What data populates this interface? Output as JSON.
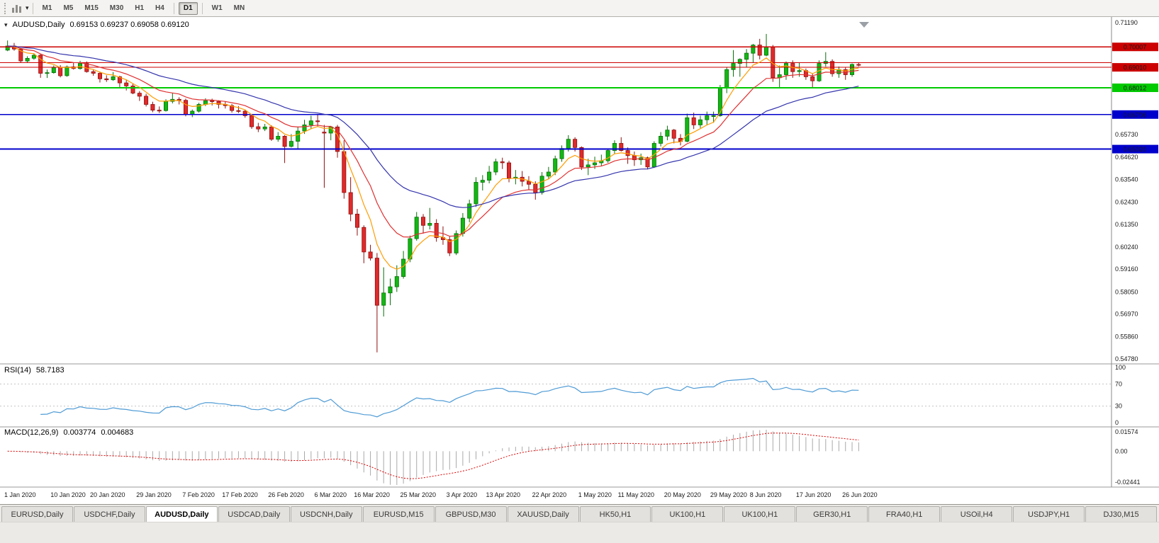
{
  "toolbar": {
    "timeframes": [
      "M1",
      "M5",
      "M15",
      "M30",
      "H1",
      "H4",
      "D1",
      "W1",
      "MN"
    ],
    "active_timeframe": "D1"
  },
  "chart": {
    "symbol_label": "AUDUSD,Daily",
    "ohlc": "0.69153 0.69237 0.69058 0.69120",
    "open": "0.69153",
    "high": "0.69237",
    "low": "0.69058",
    "close": "0.69120"
  },
  "chart_data": {
    "type": "candlestick",
    "symbol": "AUDUSD",
    "timeframe": "Daily",
    "ylim": [
      0.5478,
      0.7119
    ],
    "bull_color": "#12b812",
    "bull_edge": "#0a6e0a",
    "bear_color": "#e02a2a",
    "bear_edge": "#8f1010",
    "x_labels": [
      "1 Jan 2020",
      "10 Jan 2020",
      "20 Jan 2020",
      "29 Jan 2020",
      "7 Feb 2020",
      "17 Feb 2020",
      "26 Feb 2020",
      "6 Mar 2020",
      "16 Mar 2020",
      "25 Mar 2020",
      "3 Apr 2020",
      "13 Apr 2020",
      "22 Apr 2020",
      "1 May 2020",
      "11 May 2020",
      "20 May 2020",
      "29 May 2020",
      "8 Jun 2020",
      "17 Jun 2020",
      "26 Jun 2020"
    ],
    "x_label_indices": [
      0,
      7,
      13,
      20,
      27,
      33,
      40,
      47,
      53,
      60,
      67,
      73,
      80,
      87,
      93,
      100,
      107,
      113,
      120,
      127
    ],
    "price_axis_ticks": [
      {
        "value": 0.7119,
        "label": "0.71190"
      },
      {
        "value": 0.6573,
        "label": "0.65730"
      },
      {
        "value": 0.6462,
        "label": "0.64620"
      },
      {
        "value": 0.6354,
        "label": "0.63540"
      },
      {
        "value": 0.6243,
        "label": "0.62430"
      },
      {
        "value": 0.6135,
        "label": "0.61350"
      },
      {
        "value": 0.6024,
        "label": "0.60240"
      },
      {
        "value": 0.5916,
        "label": "0.59160"
      },
      {
        "value": 0.5805,
        "label": "0.58050"
      },
      {
        "value": 0.5697,
        "label": "0.56970"
      },
      {
        "value": 0.5586,
        "label": "0.55860"
      },
      {
        "value": 0.5478,
        "label": "0.54780"
      }
    ],
    "hlines": [
      {
        "value": 0.70007,
        "color": "#cc0000",
        "width": 1.2,
        "label": "0.70007"
      },
      {
        "value": 0.6924,
        "color": "#cc0000",
        "width": 1.2,
        "label": ""
      },
      {
        "value": 0.6901,
        "color": "#cc0000",
        "width": 1.2,
        "label": "0.69010"
      },
      {
        "value": 0.68012,
        "color": "#00ca00",
        "width": 1.8,
        "label": "0.68012"
      },
      {
        "value": 0.66706,
        "color": "#0000cc",
        "width": 1.8,
        "label": "0.66706"
      },
      {
        "value": 0.6502,
        "color": "#0000cc",
        "width": 1.8,
        "label": "0.65020"
      }
    ],
    "moving_averages": [
      {
        "period": 6,
        "color": "#ff9c00"
      },
      {
        "period": 13,
        "color": "#e03030"
      },
      {
        "period": 30,
        "color": "#3434ad"
      }
    ],
    "candles": [
      [
        0.6985,
        0.7032,
        0.698,
        0.7005
      ],
      [
        0.7005,
        0.702,
        0.6982,
        0.699
      ],
      [
        0.699,
        0.6995,
        0.6925,
        0.6932
      ],
      [
        0.6932,
        0.6955,
        0.6922,
        0.6945
      ],
      [
        0.6945,
        0.697,
        0.6938,
        0.696
      ],
      [
        0.696,
        0.6965,
        0.685,
        0.6872
      ],
      [
        0.6872,
        0.689,
        0.6849,
        0.6875
      ],
      [
        0.6875,
        0.691,
        0.687,
        0.69
      ],
      [
        0.69,
        0.6912,
        0.6852,
        0.686
      ],
      [
        0.686,
        0.691,
        0.6855,
        0.6903
      ],
      [
        0.6903,
        0.6925,
        0.689,
        0.6895
      ],
      [
        0.6895,
        0.6933,
        0.689,
        0.692
      ],
      [
        0.692,
        0.693,
        0.6875,
        0.688
      ],
      [
        0.688,
        0.6892,
        0.686,
        0.6872
      ],
      [
        0.6872,
        0.688,
        0.6827,
        0.6845
      ],
      [
        0.6845,
        0.6862,
        0.683,
        0.684
      ],
      [
        0.684,
        0.6878,
        0.6835,
        0.6855
      ],
      [
        0.6855,
        0.686,
        0.6805,
        0.6825
      ],
      [
        0.6825,
        0.6838,
        0.6788,
        0.681
      ],
      [
        0.681,
        0.682,
        0.677,
        0.6775
      ],
      [
        0.6775,
        0.6785,
        0.6737,
        0.676
      ],
      [
        0.676,
        0.6772,
        0.671,
        0.672
      ],
      [
        0.672,
        0.6733,
        0.6682,
        0.6692
      ],
      [
        0.6692,
        0.671,
        0.6678,
        0.669
      ],
      [
        0.669,
        0.6745,
        0.6685,
        0.6735
      ],
      [
        0.6735,
        0.6775,
        0.6725,
        0.6745
      ],
      [
        0.6745,
        0.6755,
        0.672,
        0.674
      ],
      [
        0.674,
        0.6748,
        0.6662,
        0.667
      ],
      [
        0.667,
        0.6695,
        0.6658,
        0.6687
      ],
      [
        0.6687,
        0.6728,
        0.668,
        0.672
      ],
      [
        0.672,
        0.675,
        0.6712,
        0.6738
      ],
      [
        0.6738,
        0.6748,
        0.6715,
        0.6735
      ],
      [
        0.6735,
        0.674,
        0.67,
        0.672
      ],
      [
        0.672,
        0.6735,
        0.67,
        0.6714
      ],
      [
        0.6714,
        0.6722,
        0.668,
        0.669
      ],
      [
        0.669,
        0.6712,
        0.6678,
        0.6687
      ],
      [
        0.6687,
        0.6695,
        0.6655,
        0.6665
      ],
      [
        0.6665,
        0.6672,
        0.6601,
        0.6611
      ],
      [
        0.6611,
        0.663,
        0.6585,
        0.66
      ],
      [
        0.66,
        0.6625,
        0.659,
        0.661
      ],
      [
        0.661,
        0.6618,
        0.6542,
        0.655
      ],
      [
        0.655,
        0.6585,
        0.6538,
        0.6565
      ],
      [
        0.6565,
        0.657,
        0.6434,
        0.6515
      ],
      [
        0.6515,
        0.6575,
        0.651,
        0.654
      ],
      [
        0.654,
        0.6612,
        0.6505,
        0.659
      ],
      [
        0.659,
        0.6645,
        0.6576,
        0.662
      ],
      [
        0.662,
        0.6665,
        0.66,
        0.664
      ],
      [
        0.664,
        0.667,
        0.6612,
        0.6639
      ],
      [
        0.6585,
        0.662,
        0.6313,
        0.658
      ],
      [
        0.658,
        0.6615,
        0.6545,
        0.661
      ],
      [
        0.661,
        0.662,
        0.646,
        0.649
      ],
      [
        0.649,
        0.6545,
        0.626,
        0.629
      ],
      [
        0.629,
        0.6365,
        0.615,
        0.6185
      ],
      [
        0.6185,
        0.621,
        0.608,
        0.612
      ],
      [
        0.612,
        0.613,
        0.5945,
        0.6
      ],
      [
        0.6,
        0.6035,
        0.5958,
        0.597
      ],
      [
        0.597,
        0.5995,
        0.551,
        0.574
      ],
      [
        0.574,
        0.5925,
        0.5685,
        0.58
      ],
      [
        0.58,
        0.587,
        0.574,
        0.583
      ],
      [
        0.583,
        0.5935,
        0.5805,
        0.588
      ],
      [
        0.588,
        0.6005,
        0.587,
        0.5965
      ],
      [
        0.5965,
        0.608,
        0.595,
        0.6065
      ],
      [
        0.6065,
        0.6195,
        0.6055,
        0.617
      ],
      [
        0.617,
        0.6185,
        0.609,
        0.613
      ],
      [
        0.613,
        0.6215,
        0.611,
        0.614
      ],
      [
        0.614,
        0.616,
        0.605,
        0.607
      ],
      [
        0.607,
        0.6125,
        0.6035,
        0.606
      ],
      [
        0.606,
        0.6075,
        0.598,
        0.5995
      ],
      [
        0.5995,
        0.6105,
        0.5985,
        0.609
      ],
      [
        0.609,
        0.619,
        0.6075,
        0.6165
      ],
      [
        0.6165,
        0.6255,
        0.6145,
        0.6235
      ],
      [
        0.6235,
        0.6365,
        0.622,
        0.634
      ],
      [
        0.634,
        0.6375,
        0.63,
        0.635
      ],
      [
        0.635,
        0.642,
        0.6335,
        0.639
      ],
      [
        0.639,
        0.6455,
        0.6375,
        0.644
      ],
      [
        0.644,
        0.646,
        0.6405,
        0.6435
      ],
      [
        0.6435,
        0.6445,
        0.634,
        0.636
      ],
      [
        0.636,
        0.64,
        0.633,
        0.6365
      ],
      [
        0.6365,
        0.6395,
        0.632,
        0.6345
      ],
      [
        0.6345,
        0.637,
        0.6305,
        0.633
      ],
      [
        0.633,
        0.6345,
        0.6255,
        0.629
      ],
      [
        0.629,
        0.639,
        0.628,
        0.637
      ],
      [
        0.637,
        0.6415,
        0.6355,
        0.639
      ],
      [
        0.639,
        0.647,
        0.6375,
        0.6455
      ],
      [
        0.6455,
        0.652,
        0.644,
        0.6505
      ],
      [
        0.6505,
        0.657,
        0.649,
        0.655
      ],
      [
        0.655,
        0.656,
        0.649,
        0.651
      ],
      [
        0.651,
        0.6515,
        0.64,
        0.6415
      ],
      [
        0.6415,
        0.6455,
        0.6375,
        0.6425
      ],
      [
        0.6425,
        0.6465,
        0.6405,
        0.6435
      ],
      [
        0.6435,
        0.6475,
        0.642,
        0.6445
      ],
      [
        0.6445,
        0.6505,
        0.6435,
        0.6495
      ],
      [
        0.6495,
        0.6545,
        0.648,
        0.653
      ],
      [
        0.653,
        0.656,
        0.649,
        0.6495
      ],
      [
        0.6495,
        0.651,
        0.643,
        0.647
      ],
      [
        0.647,
        0.649,
        0.642,
        0.645
      ],
      [
        0.645,
        0.648,
        0.6425,
        0.646
      ],
      [
        0.646,
        0.6465,
        0.6403,
        0.6415
      ],
      [
        0.6415,
        0.654,
        0.641,
        0.653
      ],
      [
        0.653,
        0.6585,
        0.6515,
        0.6565
      ],
      [
        0.6565,
        0.6616,
        0.6545,
        0.6595
      ],
      [
        0.6595,
        0.66,
        0.653,
        0.6555
      ],
      [
        0.6555,
        0.6575,
        0.652,
        0.654
      ],
      [
        0.654,
        0.6675,
        0.6535,
        0.6655
      ],
      [
        0.6655,
        0.668,
        0.66,
        0.662
      ],
      [
        0.662,
        0.6665,
        0.6605,
        0.6645
      ],
      [
        0.6645,
        0.6685,
        0.662,
        0.6665
      ],
      [
        0.6665,
        0.6685,
        0.663,
        0.6665
      ],
      [
        0.6665,
        0.6815,
        0.666,
        0.68
      ],
      [
        0.68,
        0.69,
        0.6775,
        0.689
      ],
      [
        0.689,
        0.6985,
        0.6855,
        0.692
      ],
      [
        0.692,
        0.6945,
        0.6855,
        0.694
      ],
      [
        0.694,
        0.699,
        0.69,
        0.697
      ],
      [
        0.697,
        0.7015,
        0.6925,
        0.701
      ],
      [
        0.701,
        0.704,
        0.694,
        0.696
      ],
      [
        0.696,
        0.7064,
        0.6955,
        0.7
      ],
      [
        0.7,
        0.701,
        0.683,
        0.685
      ],
      [
        0.685,
        0.691,
        0.68,
        0.6865
      ],
      [
        0.6865,
        0.693,
        0.684,
        0.692
      ],
      [
        0.692,
        0.6935,
        0.685,
        0.688
      ],
      [
        0.688,
        0.6925,
        0.6855,
        0.6885
      ],
      [
        0.6885,
        0.6895,
        0.684,
        0.6855
      ],
      [
        0.6855,
        0.687,
        0.68,
        0.6835
      ],
      [
        0.6835,
        0.6935,
        0.683,
        0.692
      ],
      [
        0.692,
        0.6975,
        0.6905,
        0.693
      ],
      [
        0.693,
        0.694,
        0.6855,
        0.687
      ],
      [
        0.687,
        0.6905,
        0.685,
        0.689
      ],
      [
        0.689,
        0.69,
        0.684,
        0.6865
      ],
      [
        0.6865,
        0.692,
        0.6855,
        0.6915
      ],
      [
        0.69153,
        0.69237,
        0.69058,
        0.6912
      ]
    ]
  },
  "rsi": {
    "label": "RSI(14)",
    "value": "58.7183",
    "period": 14,
    "levels": [
      70,
      30
    ],
    "axis_ticks": [
      "100",
      "70",
      "30",
      "0"
    ],
    "color": "#4f9bd5"
  },
  "macd": {
    "label": "MACD(12,26,9)",
    "macd_value": "0.003774",
    "signal_value": "0.004683",
    "axis_ticks": [
      "0.01574",
      "0.00",
      "-0.02441"
    ],
    "ylim": [
      -0.02441,
      0.01574
    ],
    "histogram_color": "#a9a9a9",
    "signal_color": "#dd0000"
  },
  "tabs": {
    "items": [
      "EURUSD,Daily",
      "USDCHF,Daily",
      "AUDUSD,Daily",
      "USDCAD,Daily",
      "USDCNH,Daily",
      "EURUSD,M15",
      "GBPUSD,M30",
      "XAUUSD,Daily",
      "HK50,H1",
      "UK100,H1",
      "UK100,H1",
      "GER30,H1",
      "FRA40,H1",
      "USOil,H4",
      "USDJPY,H1",
      "DJ30,M15"
    ],
    "active_index": 2,
    "active": "AUDUSD,Daily"
  }
}
